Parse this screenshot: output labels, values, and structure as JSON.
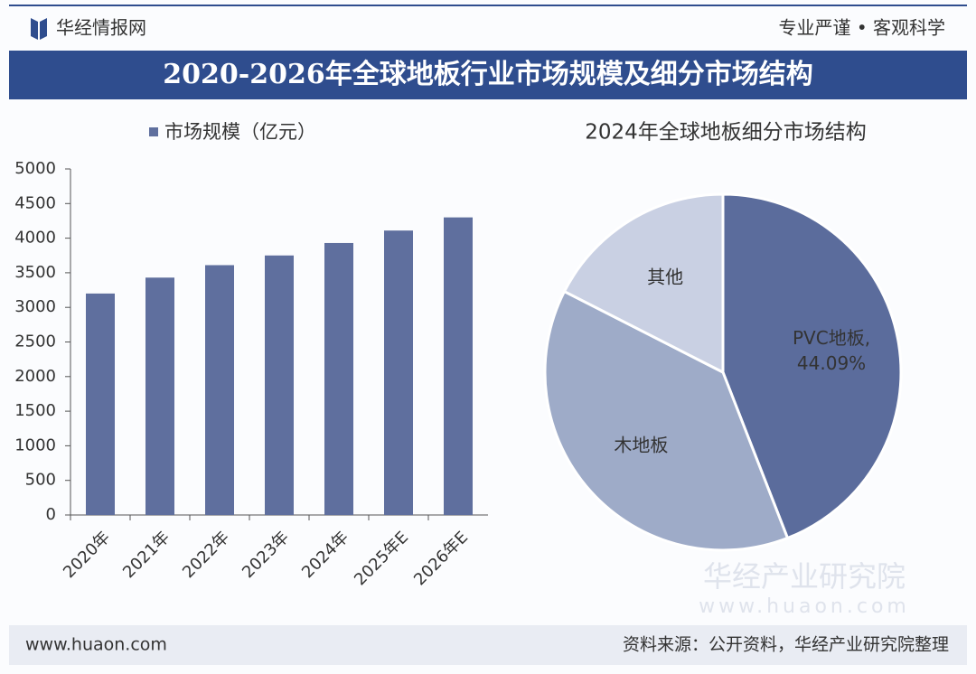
{
  "header": {
    "brand": "华经情报网",
    "slogan": "专业严谨 • 客观科学"
  },
  "title": "2020-2026年全球地板行业市场规模及细分市场结构",
  "chart_data": [
    {
      "type": "bar",
      "series": [
        {
          "name": "市场规模（亿元）",
          "color": "#5f6f9e",
          "values": [
            3200,
            3430,
            3610,
            3750,
            3930,
            4110,
            4300
          ]
        }
      ],
      "categories": [
        "2020年",
        "2021年",
        "2022年",
        "2023年",
        "2024年",
        "2025年E",
        "2026年E"
      ],
      "ylim": [
        0,
        5000
      ],
      "yticks": [
        0,
        500,
        1000,
        1500,
        2000,
        2500,
        3000,
        3500,
        4000,
        4500,
        5000
      ],
      "grid": false
    },
    {
      "type": "pie",
      "title": "2024年全球地板细分市场结构",
      "categories": [
        "PVC地板,",
        "木地板",
        "其他"
      ],
      "values": [
        44.09,
        38.41,
        17.5
      ],
      "value_labels": [
        "44.09%",
        null,
        null
      ],
      "colors": [
        "#5b6c9c",
        "#9eabc8",
        "#c9d0e3"
      ]
    }
  ],
  "footer": {
    "website": "www.huaon.com",
    "source": "资料来源：公开资料，华经产业研究院整理"
  },
  "watermark": {
    "name": "华经产业研究院",
    "url": "www.huaon.com"
  }
}
